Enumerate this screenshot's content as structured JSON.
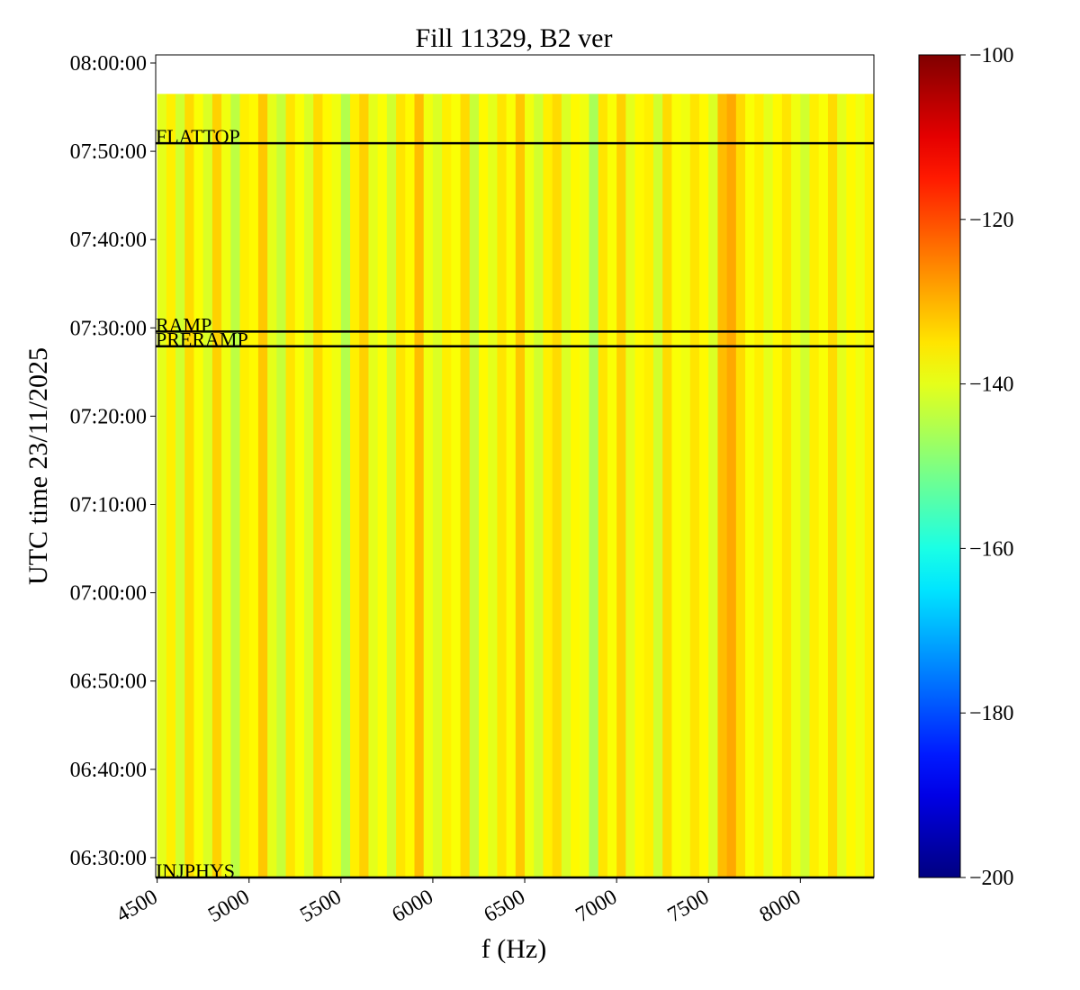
{
  "chart_data": {
    "type": "spectrogram",
    "title": "Fill 11329, B2 ver",
    "x_label": "f (Hz)",
    "y_label": "UTC time 23/11/2025",
    "xlim": [
      4492,
      8400
    ],
    "xticks": [
      4500,
      5000,
      5500,
      6000,
      6500,
      7000,
      7500,
      8000
    ],
    "ylim": [
      "06:27:45",
      "08:00:55"
    ],
    "yticks": [
      "06:30:00",
      "06:40:00",
      "06:50:00",
      "07:00:00",
      "07:10:00",
      "07:20:00",
      "07:30:00",
      "07:40:00",
      "07:50:00",
      "08:00:00"
    ],
    "time_start": "06:27:45",
    "time_end": "07:56:30",
    "x": [
      4500,
      4550,
      4600,
      4650,
      4700,
      4750,
      4800,
      4850,
      4900,
      4950,
      5000,
      5050,
      5100,
      5150,
      5200,
      5250,
      5300,
      5350,
      5400,
      5450,
      5500,
      5550,
      5600,
      5650,
      5700,
      5750,
      5800,
      5850,
      5900,
      5950,
      6000,
      6050,
      6100,
      6150,
      6200,
      6250,
      6300,
      6350,
      6400,
      6450,
      6500,
      6550,
      6600,
      6650,
      6700,
      6750,
      6800,
      6850,
      6900,
      6950,
      7000,
      7050,
      7100,
      7150,
      7200,
      7250,
      7300,
      7350,
      7400,
      7450,
      7500,
      7550,
      7600,
      7650,
      7700,
      7750,
      7800,
      7850,
      7900,
      7950,
      8000,
      8050,
      8100,
      8150,
      8200,
      8250,
      8300,
      8350
    ],
    "values": [
      -140,
      -136,
      -142,
      -134,
      -138,
      -141,
      -133,
      -139,
      -144,
      -136,
      -137,
      -132,
      -140,
      -143,
      -135,
      -138,
      -141,
      -134,
      -137,
      -139,
      -145,
      -136,
      -133,
      -140,
      -138,
      -142,
      -135,
      -137,
      -131,
      -139,
      -141,
      -136,
      -138,
      -134,
      -143,
      -137,
      -140,
      -135,
      -138,
      -132,
      -139,
      -142,
      -136,
      -134,
      -141,
      -137,
      -139,
      -146,
      -135,
      -138,
      -133,
      -140,
      -137,
      -136,
      -142,
      -134,
      -138,
      -139,
      -135,
      -137,
      -141,
      -131,
      -129,
      -134,
      -138,
      -136,
      -140,
      -137,
      -135,
      -139,
      -142,
      -136,
      -138,
      -134,
      -140,
      -137,
      -139,
      -136
    ],
    "colormap": "jet",
    "clim": [
      -200,
      -100
    ],
    "cticks": [
      {
        "value": -200,
        "label": "−200"
      },
      {
        "value": -180,
        "label": "−180"
      },
      {
        "value": -160,
        "label": "−160"
      },
      {
        "value": -140,
        "label": "−140"
      },
      {
        "value": -120,
        "label": "−120"
      },
      {
        "value": -100,
        "label": "−100"
      }
    ],
    "events": [
      {
        "label": "FLATTOP",
        "time": "07:50:55"
      },
      {
        "label": "RAMP",
        "time": "07:29:35"
      },
      {
        "label": "PRERAMP",
        "time": "07:27:55"
      },
      {
        "label": "INJPHYS",
        "time": "06:27:45"
      }
    ]
  }
}
